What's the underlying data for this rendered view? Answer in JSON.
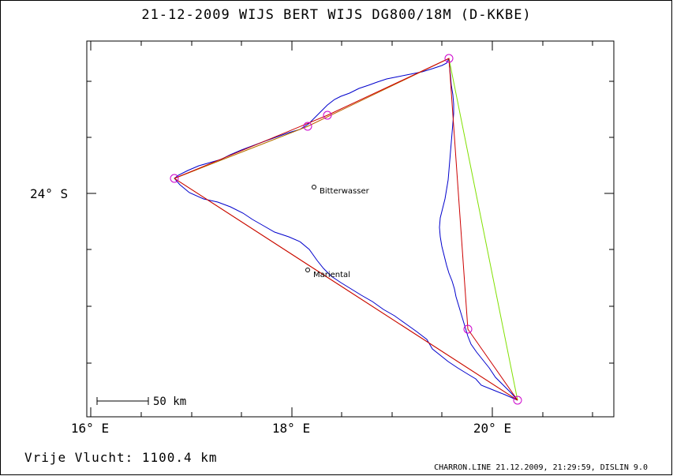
{
  "header": {
    "title": "21-12-2009   WIJS BERT WIJS   DG800/18M (D-KKBE)"
  },
  "axes": {
    "x_labels": [
      "16° E",
      "18° E",
      "20° E"
    ],
    "y_labels": [
      "24° S"
    ]
  },
  "places": [
    {
      "name": "Bitterwasser"
    },
    {
      "name": "Mariental"
    }
  ],
  "scale": {
    "label": "50 km"
  },
  "footer": {
    "distance": "Vrije Vlucht: 1100.4 km",
    "info": "CHARRON.LINE 21.12.2009, 21:29:59, DISLIN 9.0"
  },
  "colors": {
    "track": "#0000cc",
    "task_line": "#cc0000",
    "alt_line": "#c06000",
    "closing_line": "#80e000",
    "turnpoint": "#cc00cc"
  }
}
